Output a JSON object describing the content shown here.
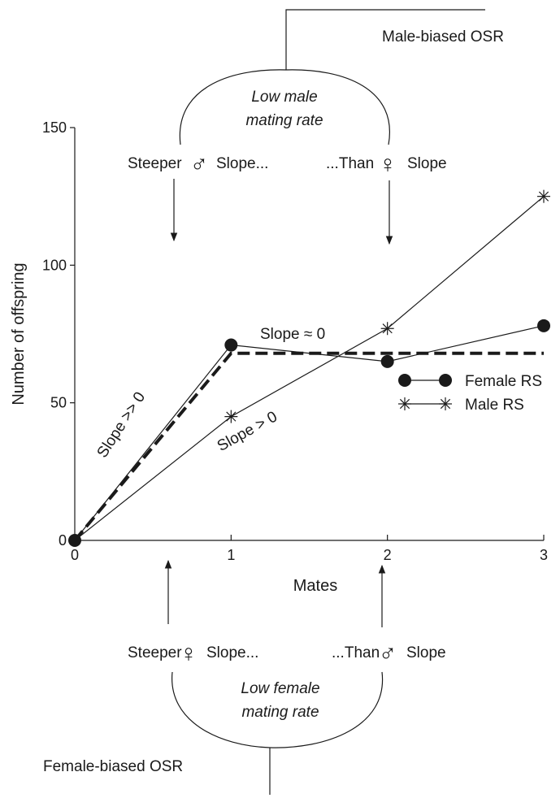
{
  "chart_data": {
    "type": "line",
    "xlabel": "Mates",
    "ylabel": "Number of offspring",
    "x": [
      0,
      1,
      2,
      3
    ],
    "xticks": [
      "0",
      "1",
      "2",
      "3"
    ],
    "yticks": [
      "0",
      "50",
      "100",
      "150"
    ],
    "xlim": [
      0,
      3
    ],
    "ylim": [
      0,
      150
    ],
    "legend_position": "right",
    "series": [
      {
        "name": "Female RS",
        "marker": "filled-circle",
        "values": [
          0,
          71,
          65,
          78
        ]
      },
      {
        "name": "Male RS",
        "marker": "asterisk",
        "values": [
          0,
          45,
          77,
          125
        ]
      }
    ],
    "reference_line": {
      "style": "dashed",
      "points": [
        [
          0,
          0
        ],
        [
          1,
          68
        ],
        [
          3,
          68
        ]
      ]
    },
    "annotations": {
      "slope_much_greater": "Slope >> 0",
      "slope_greater": "Slope > 0",
      "slope_approx_zero": "Slope ≈ 0"
    }
  },
  "top_panel": {
    "osr_label": "Male-biased OSR",
    "rate_line1": "Low male",
    "rate_line2": "mating rate",
    "left_prefix": "Steeper",
    "left_suffix": "Slope...",
    "right_prefix": "...Than",
    "right_suffix": "Slope",
    "left_symbol": "♂",
    "right_symbol": "♀"
  },
  "bottom_panel": {
    "osr_label": "Female-biased OSR",
    "rate_line1": "Low female",
    "rate_line2": "mating rate",
    "left_prefix": "Steeper",
    "left_suffix": "Slope...",
    "right_prefix": "...Than",
    "right_suffix": "Slope",
    "left_symbol": "♀",
    "right_symbol": "♂"
  },
  "colors": {
    "ink": "#1a1a1a",
    "background": "#ffffff"
  }
}
